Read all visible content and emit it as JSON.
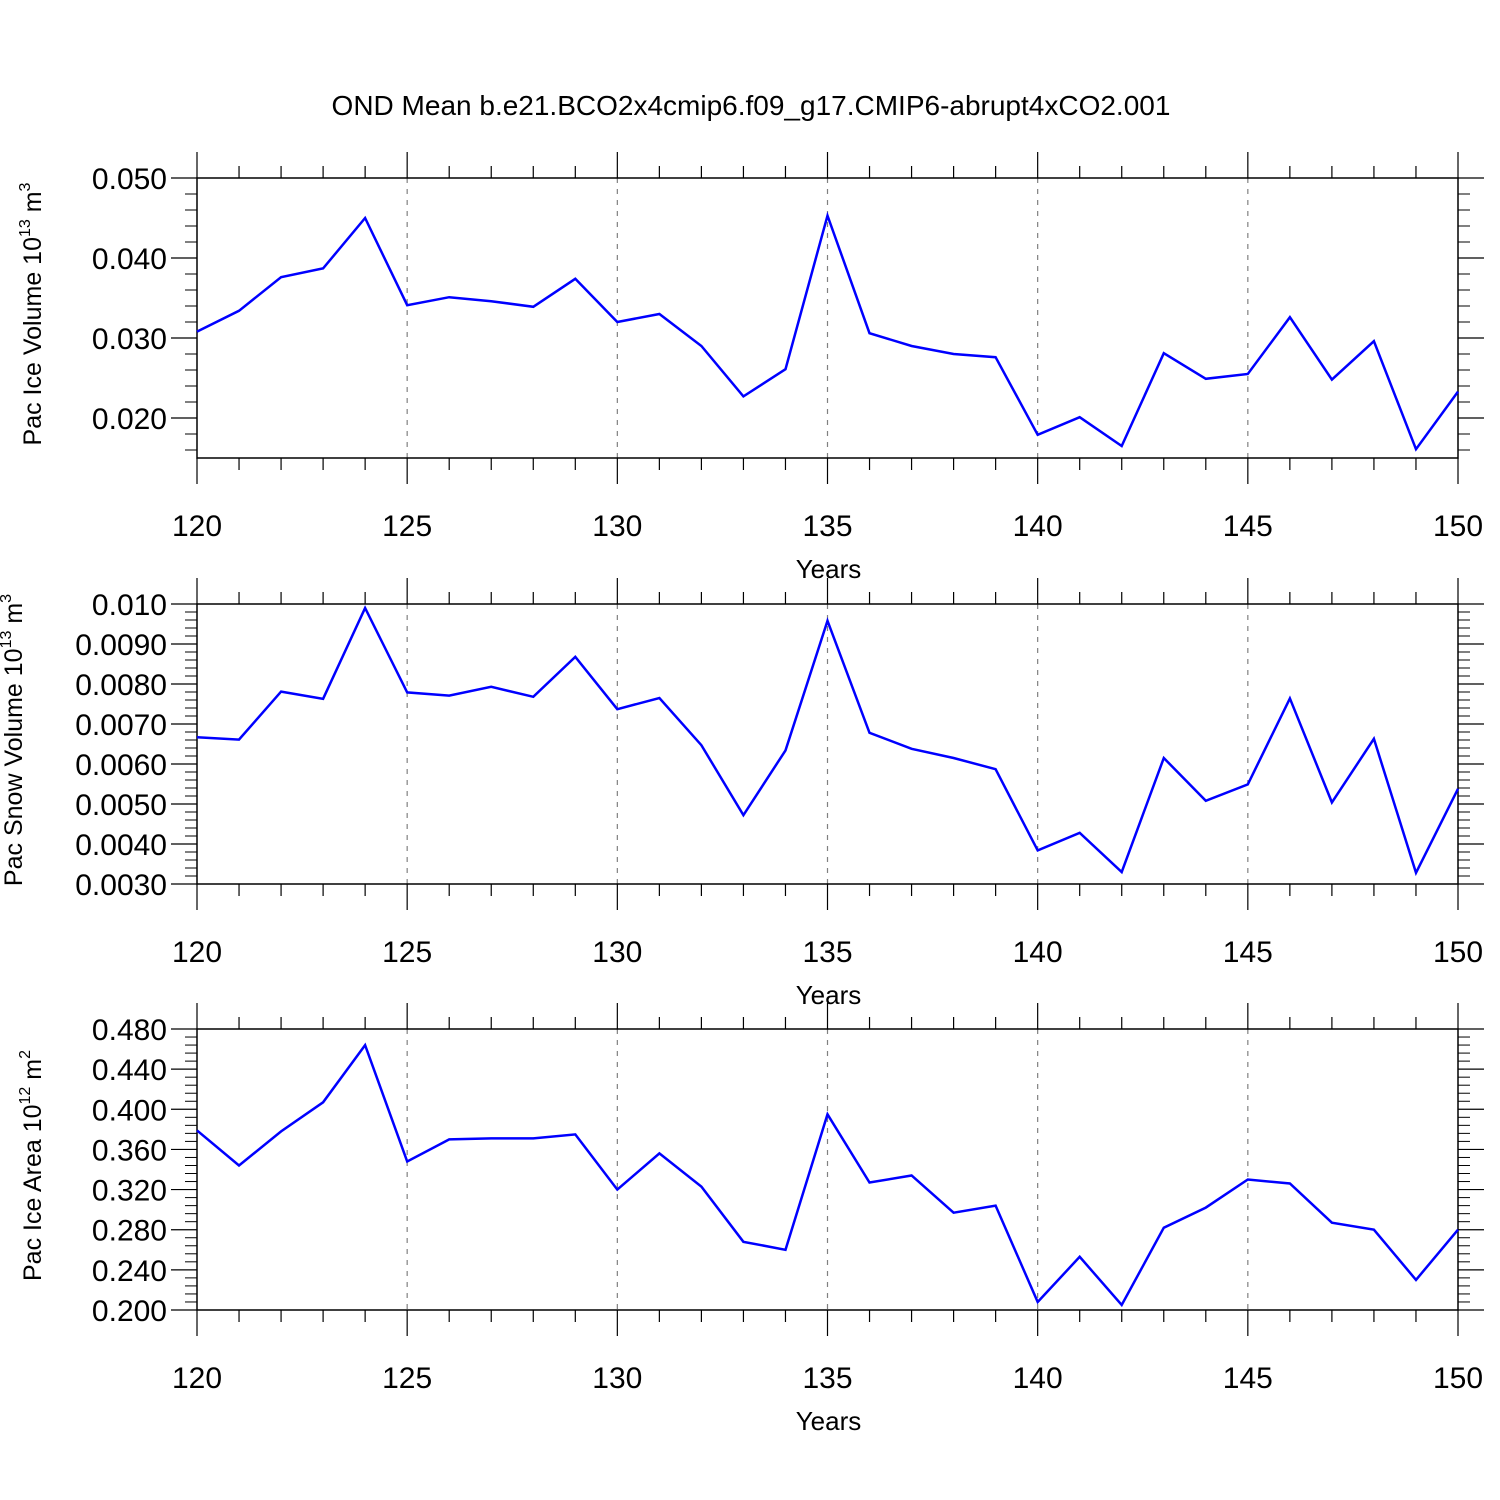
{
  "title": "OND Mean b.e21.BCO2x4cmip6.f09_g17.CMIP6-abrupt4xCO2.001",
  "colors": {
    "series": "#0000ff",
    "axis": "#000000",
    "grid": "#808080"
  },
  "chart_data": [
    {
      "type": "line",
      "xlabel": "Years",
      "ylabel": {
        "text": "Pac Ice Volume 10",
        "sup": "13",
        "unit": " m",
        "unit_sup": "3"
      },
      "xlim": [
        120,
        150
      ],
      "ylim": [
        0.015,
        0.05
      ],
      "x_ticks": [
        120,
        125,
        130,
        135,
        140,
        145,
        150
      ],
      "x_tick_labels": [
        "120",
        "125",
        "130",
        "135",
        "140",
        "145",
        "150"
      ],
      "y_ticks": [
        0.02,
        0.03,
        0.04,
        0.05
      ],
      "y_tick_labels": [
        "0.020",
        "0.030",
        "0.040",
        "0.050"
      ],
      "grid": "vertical dashed",
      "x": [
        120,
        121,
        122,
        123,
        124,
        125,
        126,
        127,
        128,
        129,
        130,
        131,
        132,
        133,
        134,
        135,
        136,
        137,
        138,
        139,
        140,
        141,
        142,
        143,
        144,
        145,
        146,
        147,
        148,
        149,
        150
      ],
      "values": [
        0.0308,
        0.0334,
        0.0376,
        0.0387,
        0.045,
        0.0341,
        0.0351,
        0.0346,
        0.0339,
        0.0374,
        0.032,
        0.033,
        0.029,
        0.0227,
        0.0261,
        0.0453,
        0.0306,
        0.029,
        0.028,
        0.0276,
        0.0179,
        0.0201,
        0.0165,
        0.0281,
        0.0249,
        0.0255,
        0.0326,
        0.0248,
        0.0296,
        0.0161,
        0.0233
      ]
    },
    {
      "type": "line",
      "xlabel": "Years",
      "ylabel": {
        "text": "Pac Snow Volume 10",
        "sup": "13",
        "unit": " m",
        "unit_sup": "3"
      },
      "xlim": [
        120,
        150
      ],
      "ylim": [
        0.003,
        0.01
      ],
      "x_ticks": [
        120,
        125,
        130,
        135,
        140,
        145,
        150
      ],
      "x_tick_labels": [
        "120",
        "125",
        "130",
        "135",
        "140",
        "145",
        "150"
      ],
      "y_ticks": [
        0.003,
        0.004,
        0.005,
        0.006,
        0.007,
        0.008,
        0.009,
        0.01
      ],
      "y_tick_labels": [
        "0.0030",
        "0.0040",
        "0.0050",
        "0.0060",
        "0.0070",
        "0.0080",
        "0.0090",
        "0.010"
      ],
      "grid": "vertical dashed",
      "x": [
        120,
        121,
        122,
        123,
        124,
        125,
        126,
        127,
        128,
        129,
        130,
        131,
        132,
        133,
        134,
        135,
        136,
        137,
        138,
        139,
        140,
        141,
        142,
        143,
        144,
        145,
        146,
        147,
        148,
        149,
        150
      ],
      "values": [
        0.00667,
        0.00661,
        0.00781,
        0.00763,
        0.0099,
        0.00779,
        0.00771,
        0.00793,
        0.00768,
        0.00868,
        0.00737,
        0.00765,
        0.00647,
        0.00472,
        0.00634,
        0.00958,
        0.00678,
        0.00638,
        0.00615,
        0.00587,
        0.00384,
        0.00428,
        0.0033,
        0.00615,
        0.00508,
        0.00549,
        0.00764,
        0.00504,
        0.00663,
        0.00328,
        0.00538
      ]
    },
    {
      "type": "line",
      "xlabel": "Years",
      "ylabel": {
        "text": "Pac Ice Area 10",
        "sup": "12",
        "unit": " m",
        "unit_sup": "2"
      },
      "xlim": [
        120,
        150
      ],
      "ylim": [
        0.2,
        0.48
      ],
      "x_ticks": [
        120,
        125,
        130,
        135,
        140,
        145,
        150
      ],
      "x_tick_labels": [
        "120",
        "125",
        "130",
        "135",
        "140",
        "145",
        "150"
      ],
      "y_ticks": [
        0.2,
        0.24,
        0.28,
        0.32,
        0.36,
        0.4,
        0.44,
        0.48
      ],
      "y_tick_labels": [
        "0.200",
        "0.240",
        "0.280",
        "0.320",
        "0.360",
        "0.400",
        "0.440",
        "0.480"
      ],
      "grid": "vertical dashed",
      "x": [
        120,
        121,
        122,
        123,
        124,
        125,
        126,
        127,
        128,
        129,
        130,
        131,
        132,
        133,
        134,
        135,
        136,
        137,
        138,
        139,
        140,
        141,
        142,
        143,
        144,
        145,
        146,
        147,
        148,
        149,
        150
      ],
      "values": [
        0.379,
        0.344,
        0.378,
        0.407,
        0.464,
        0.348,
        0.37,
        0.371,
        0.371,
        0.375,
        0.32,
        0.356,
        0.323,
        0.268,
        0.26,
        0.395,
        0.327,
        0.334,
        0.297,
        0.304,
        0.208,
        0.253,
        0.205,
        0.282,
        0.302,
        0.33,
        0.326,
        0.287,
        0.28,
        0.23,
        0.28
      ]
    }
  ]
}
